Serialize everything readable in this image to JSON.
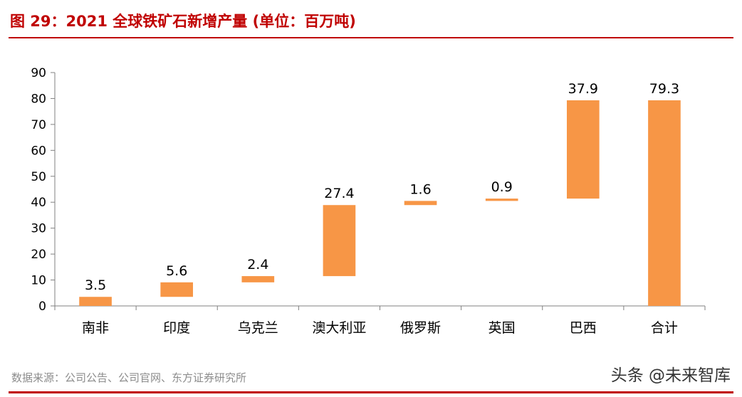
{
  "figure": {
    "title": "图 29：2021 全球铁矿石新增产量 (单位：百万吨)",
    "source": "数据来源：公司公告、公司官网、东方证券研究所",
    "watermark": "头条 @未来智库"
  },
  "colors": {
    "bar": "#f79646",
    "title": "#c00000",
    "axis": "#808080",
    "text": "#000000"
  },
  "chart_data": {
    "type": "bar",
    "subtype": "waterfall",
    "categories": [
      "南非",
      "印度",
      "乌克兰",
      "澳大利亚",
      "俄罗斯",
      "英国",
      "巴西",
      "合计"
    ],
    "values": [
      3.5,
      5.6,
      2.4,
      27.4,
      1.6,
      0.9,
      37.9,
      79.3
    ],
    "data_labels": [
      "3.5",
      "5.6",
      "2.4",
      "27.4",
      "1.6",
      "0.9",
      "37.9",
      "79.3"
    ],
    "total_index": 7,
    "ylim": [
      0,
      90
    ],
    "yticks": [
      0,
      10,
      20,
      30,
      40,
      50,
      60,
      70,
      80,
      90
    ],
    "xlabel": "",
    "ylabel": "",
    "grid": false,
    "legend": "none"
  }
}
